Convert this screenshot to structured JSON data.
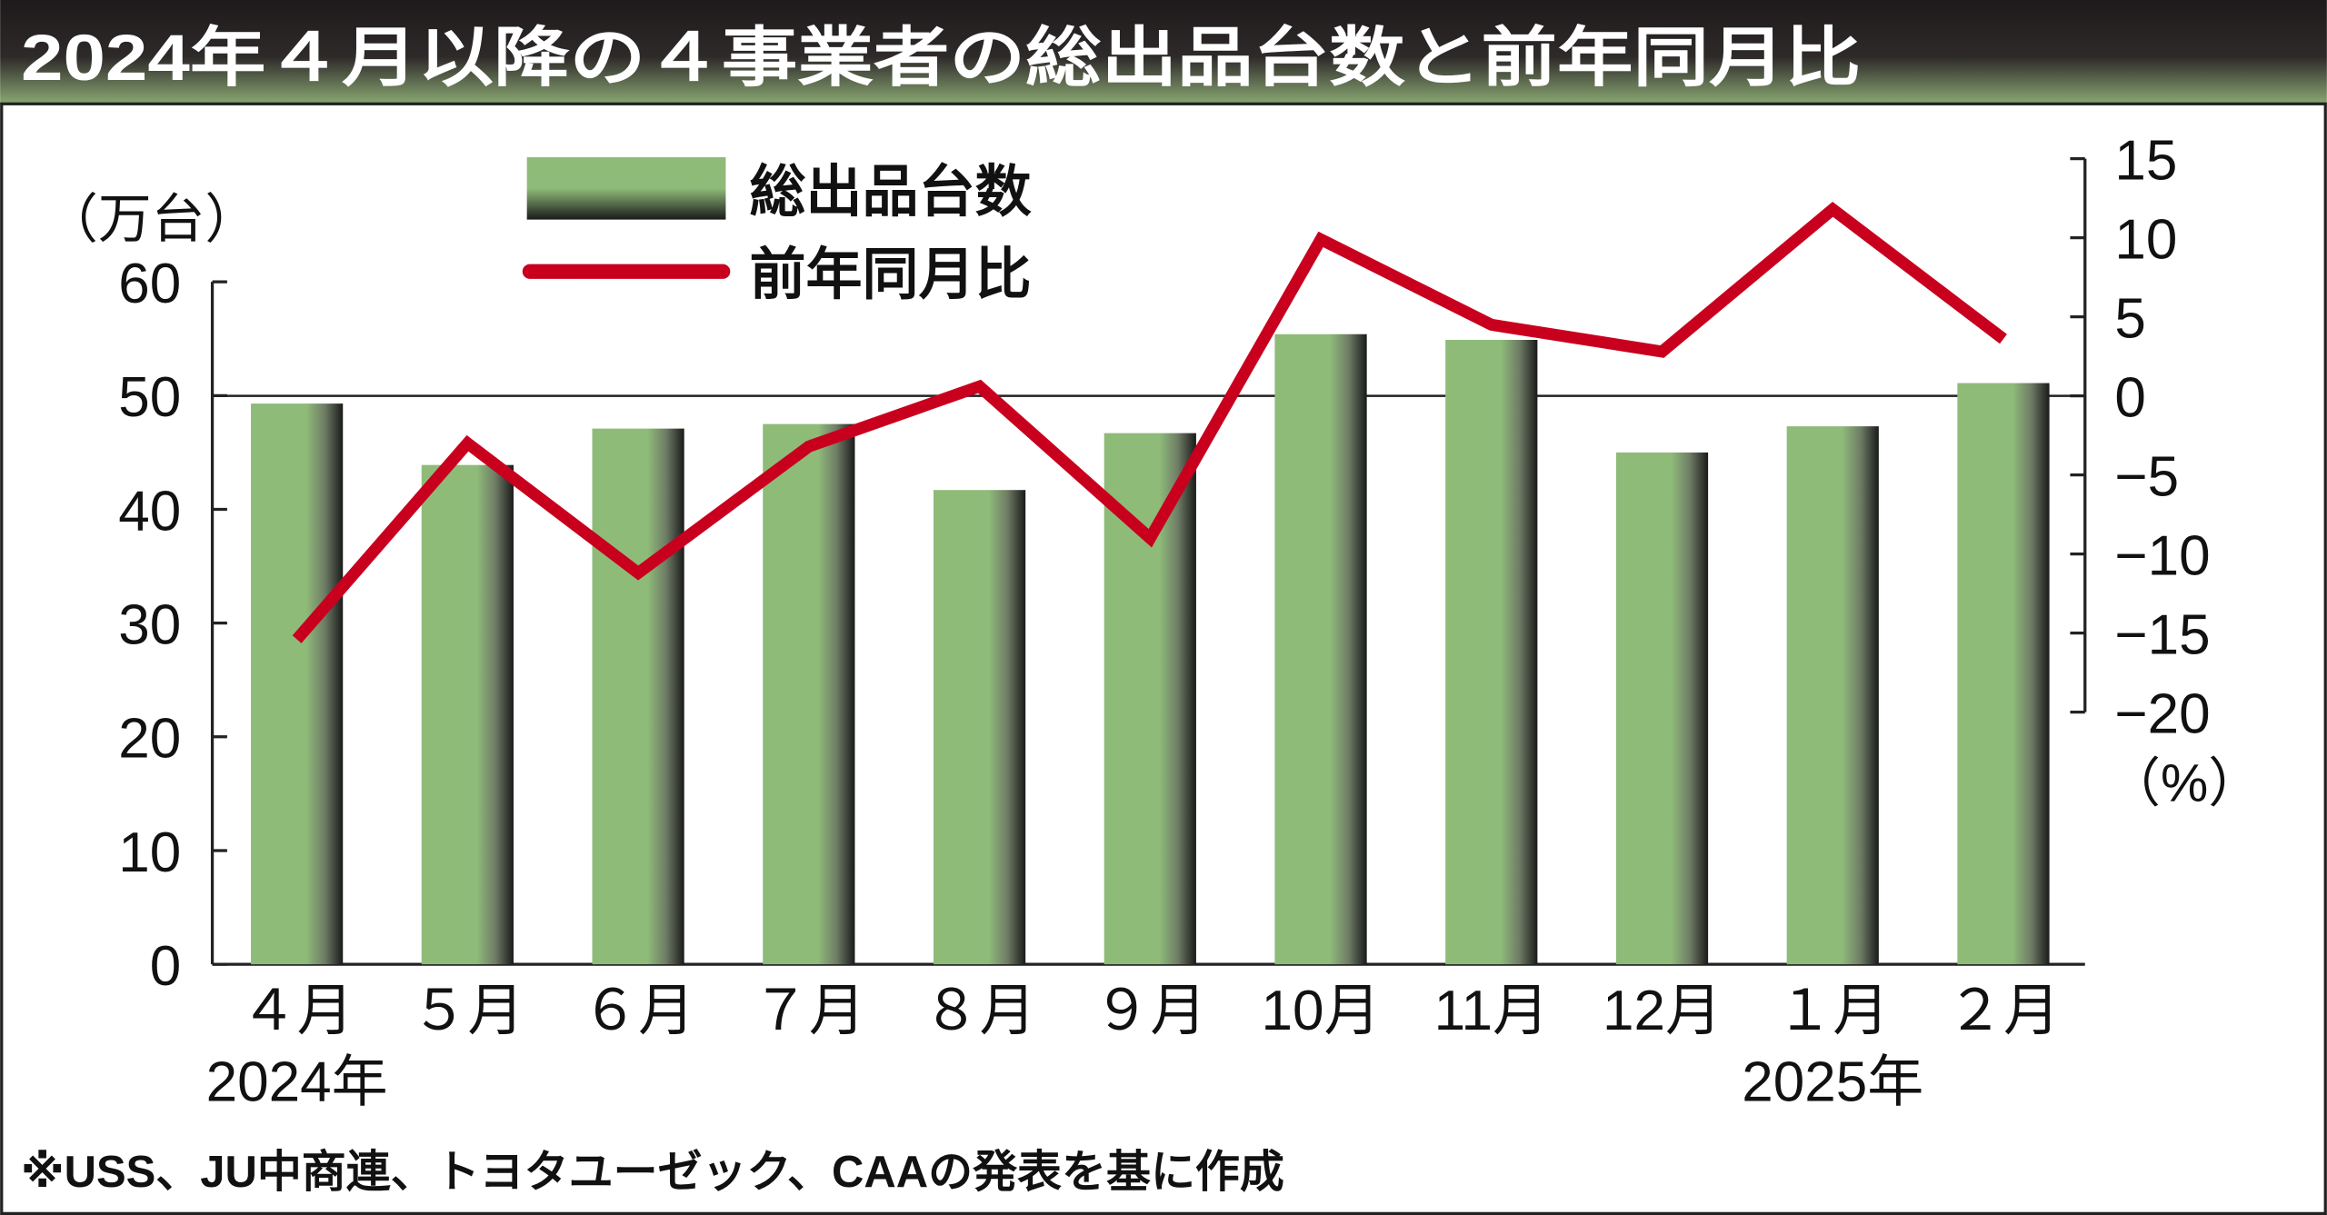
{
  "colors": {
    "bar": "#8fbb79",
    "line": "#c8001e",
    "title_top": "#1e1a1b",
    "title_bottom": "#8aa872"
  },
  "chart_data": {
    "type": "bar+line",
    "title": "2024年４月以降の４事業者の総出品台数と前年同月比",
    "categories": [
      "４月",
      "５月",
      "６月",
      "７月",
      "８月",
      "９月",
      "10月",
      "11月",
      "12月",
      "１月",
      "２月"
    ],
    "year_labels": {
      "first": "2024年",
      "last": "2025年"
    },
    "series": [
      {
        "name": "総出品台数",
        "type": "bar",
        "axis": "left",
        "values": [
          49.3,
          43.9,
          47.1,
          47.5,
          41.7,
          46.7,
          55.4,
          54.9,
          45.0,
          47.3,
          51.1
        ]
      },
      {
        "name": "前年同月比",
        "type": "line",
        "axis": "right",
        "values": [
          -15.4,
          -3.0,
          -11.2,
          -3.2,
          0.6,
          -9.0,
          9.9,
          4.5,
          2.8,
          11.8,
          3.6
        ]
      }
    ],
    "left_axis": {
      "unit": "（万台）",
      "ylim": [
        0,
        60
      ],
      "ticks": [
        "0",
        "10",
        "20",
        "30",
        "40",
        "50",
        "60"
      ]
    },
    "right_axis": {
      "unit": "（%）",
      "ylim": [
        -20,
        15
      ],
      "ticks": [
        "−20",
        "−15",
        "−10",
        "−5",
        "0",
        "5",
        "10",
        "15"
      ]
    },
    "legend": {
      "placement": "top-left"
    },
    "source": "※USS、JU中商連、トヨタユーゼック、CAAの発表を基に作成"
  }
}
